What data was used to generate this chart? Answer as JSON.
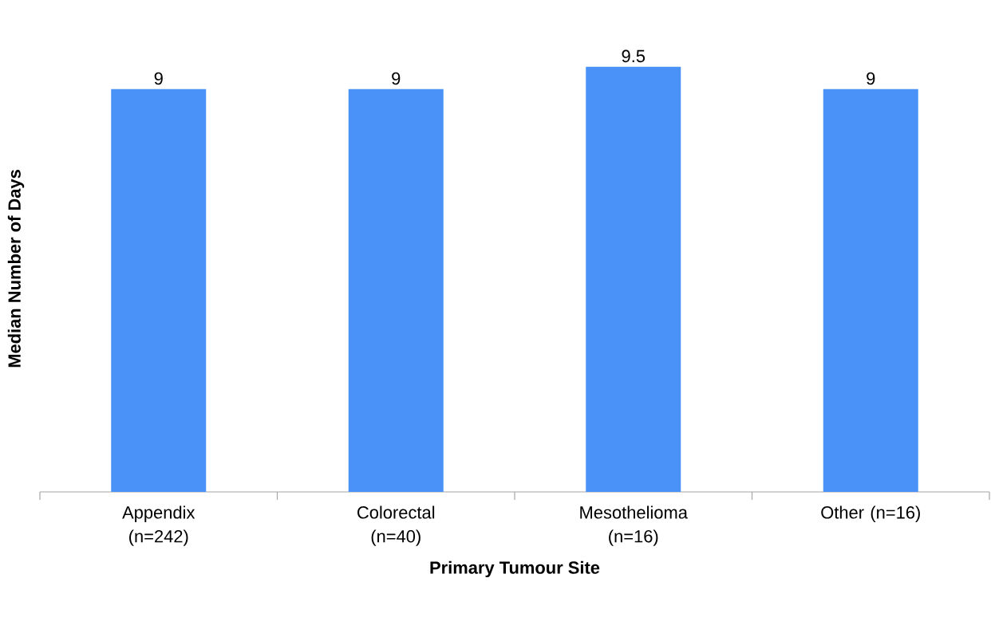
{
  "chart_data": {
    "type": "bar",
    "xlabel": "Primary Tumour Site",
    "ylabel": "Median Number of Days",
    "categories": [
      "Appendix (n=242)",
      "Colorectal (n=40)",
      "Mesothelioma (n=16)",
      "Other (n=16)"
    ],
    "values": [
      9,
      9,
      9.5,
      9
    ],
    "color": "#4a92f7",
    "data_labels": true
  }
}
